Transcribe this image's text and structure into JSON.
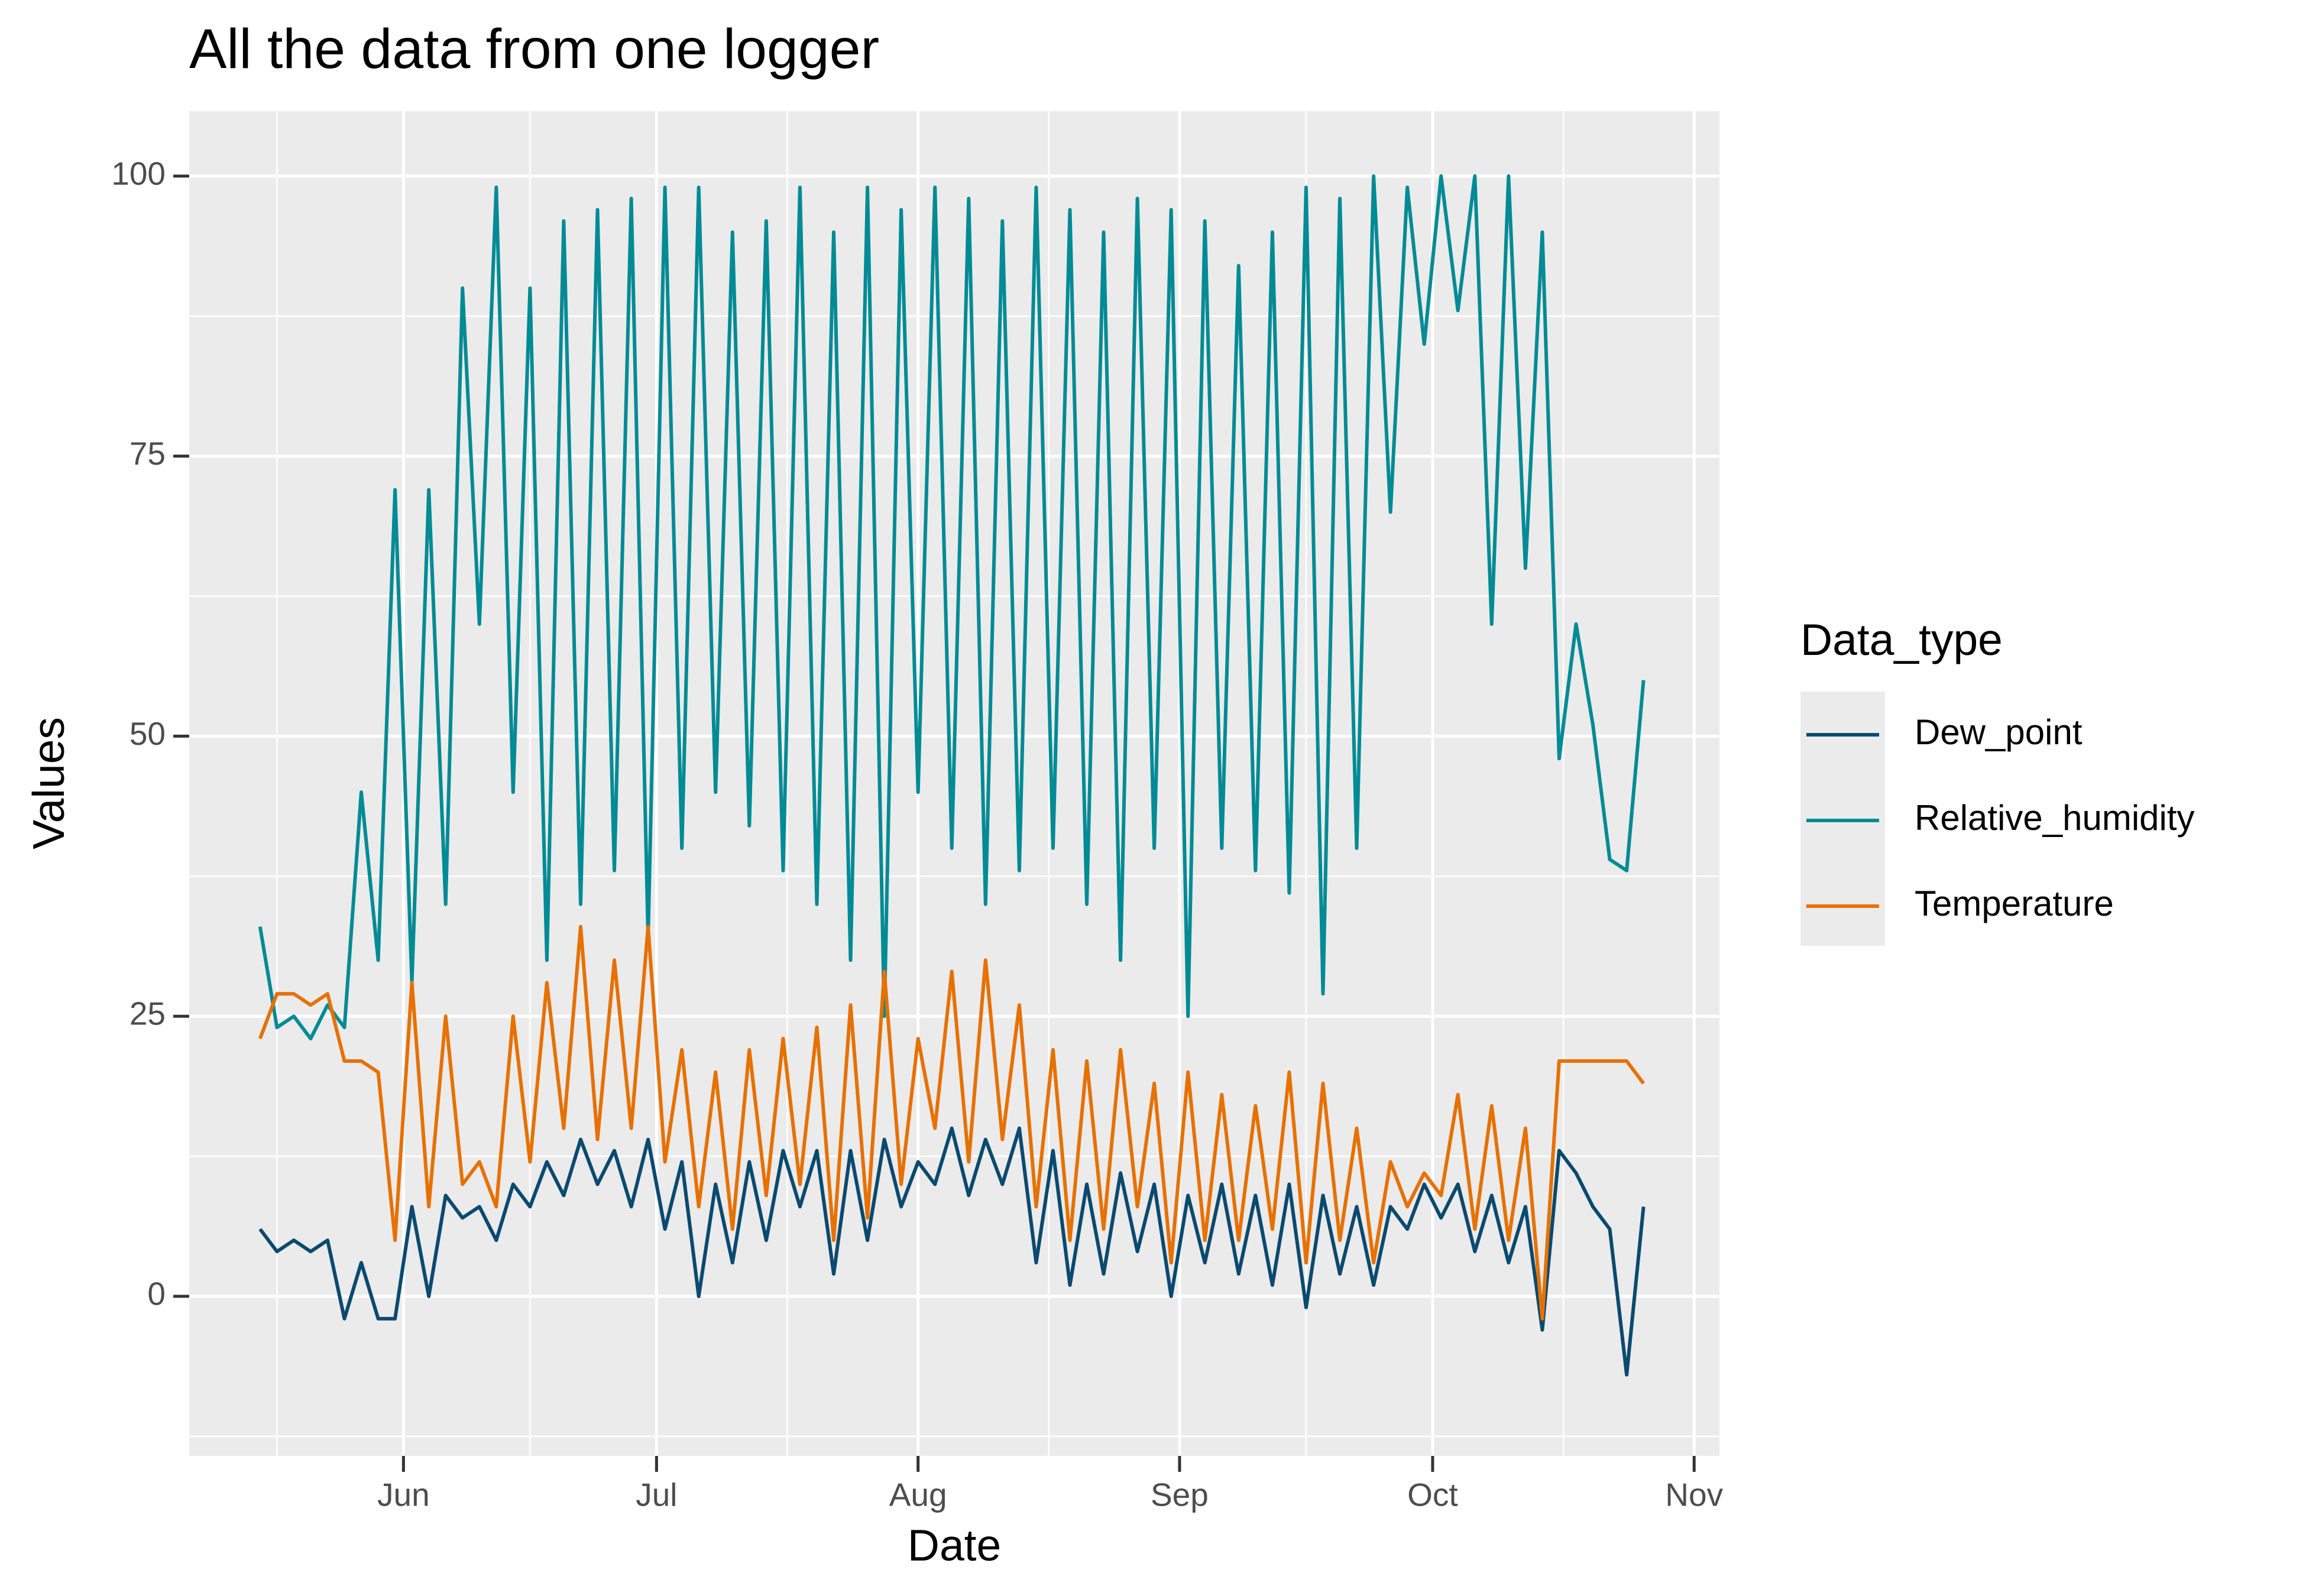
{
  "chart_data": {
    "type": "line",
    "title": "All the data from one logger",
    "x_label": "Date",
    "y_label": "Values",
    "legend_title": "Data_type",
    "legend_position": "right",
    "grid": true,
    "x": [
      135,
      137,
      139,
      141,
      143,
      145,
      147,
      149,
      151,
      153,
      155,
      157,
      159,
      161,
      163,
      165,
      167,
      169,
      171,
      173,
      175,
      177,
      179,
      181,
      183,
      185,
      187,
      189,
      191,
      193,
      195,
      197,
      199,
      201,
      203,
      205,
      207,
      209,
      211,
      213,
      215,
      217,
      219,
      221,
      223,
      225,
      227,
      229,
      231,
      233,
      235,
      237,
      239,
      241,
      243,
      245,
      247,
      249,
      251,
      253,
      255,
      257,
      259,
      261,
      263,
      265,
      267,
      269,
      271,
      273,
      275,
      277,
      279,
      281,
      283,
      285,
      287,
      289,
      291,
      293,
      295,
      297,
      299
    ],
    "xlim": [
      126.6,
      308
    ],
    "xticks": [
      {
        "value": 152,
        "label": "Jun"
      },
      {
        "value": 182,
        "label": "Jul"
      },
      {
        "value": 213,
        "label": "Aug"
      },
      {
        "value": 244,
        "label": "Sep"
      },
      {
        "value": 274,
        "label": "Oct"
      },
      {
        "value": 305,
        "label": "Nov"
      }
    ],
    "ylim": [
      -14.25,
      105.8
    ],
    "yticks": [
      0,
      25,
      50,
      75,
      100
    ],
    "series": [
      {
        "name": "Dew_point",
        "color": "#0b4a6f",
        "values": [
          6,
          4,
          5,
          4,
          5,
          -2,
          3,
          -2,
          -2,
          8,
          0,
          9,
          7,
          8,
          5,
          10,
          8,
          12,
          9,
          14,
          10,
          13,
          8,
          14,
          6,
          12,
          0,
          10,
          3,
          12,
          5,
          13,
          8,
          13,
          2,
          13,
          5,
          14,
          8,
          12,
          10,
          15,
          9,
          14,
          10,
          15,
          3,
          13,
          1,
          10,
          2,
          11,
          4,
          10,
          0,
          9,
          3,
          10,
          2,
          9,
          1,
          10,
          -1,
          9,
          2,
          8,
          1,
          8,
          6,
          10,
          7,
          10,
          4,
          9,
          3,
          8,
          -3,
          13,
          11,
          8,
          6,
          -7,
          8
        ]
      },
      {
        "name": "Relative_humidity",
        "color": "#008b95",
        "values": [
          33,
          24,
          25,
          23,
          26,
          24,
          45,
          30,
          72,
          28,
          72,
          35,
          90,
          60,
          99,
          45,
          90,
          30,
          96,
          35,
          97,
          38,
          98,
          32,
          99,
          40,
          99,
          45,
          95,
          42,
          96,
          38,
          99,
          35,
          95,
          30,
          99,
          25,
          97,
          45,
          99,
          40,
          98,
          35,
          96,
          38,
          99,
          40,
          97,
          35,
          95,
          30,
          98,
          40,
          97,
          25,
          96,
          40,
          92,
          38,
          95,
          36,
          99,
          27,
          98,
          40,
          100,
          70,
          99,
          85,
          100,
          88,
          100,
          60,
          100,
          65,
          95,
          48,
          60,
          51,
          39,
          38,
          55
        ]
      },
      {
        "name": "Temperature",
        "color": "#e67100",
        "values": [
          23,
          27,
          27,
          26,
          27,
          21,
          21,
          20,
          5,
          28,
          8,
          25,
          10,
          12,
          8,
          25,
          12,
          28,
          15,
          33,
          14,
          30,
          15,
          33,
          12,
          22,
          8,
          20,
          6,
          22,
          9,
          23,
          10,
          24,
          5,
          26,
          7,
          29,
          10,
          23,
          15,
          29,
          12,
          30,
          14,
          26,
          8,
          22,
          5,
          21,
          6,
          22,
          8,
          19,
          3,
          20,
          5,
          18,
          5,
          17,
          6,
          20,
          3,
          19,
          5,
          15,
          3,
          12,
          8,
          11,
          9,
          18,
          6,
          17,
          5,
          15,
          -2,
          21,
          21,
          21,
          21,
          21,
          19
        ]
      }
    ]
  }
}
